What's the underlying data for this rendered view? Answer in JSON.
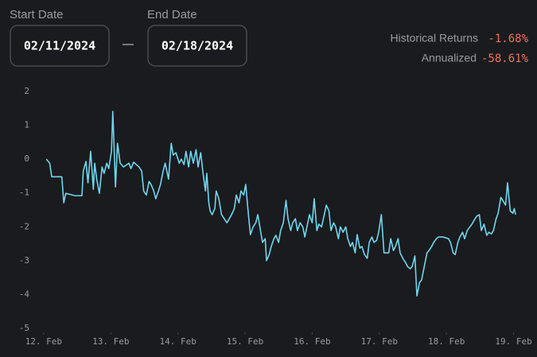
{
  "ui": {
    "start_label": "Start Date",
    "start_value": "02/11/2024",
    "end_label": "End Date",
    "end_value": "02/18/2024",
    "returns_label": "Historical Returns",
    "returns_value": "-1.68%",
    "annualized_label": "Annualized",
    "annualized_value": "-58.61%"
  },
  "chart_data": {
    "type": "line",
    "color": "#6fd6ee",
    "x": [
      12.04,
      12.09,
      12.12,
      12.27,
      12.3,
      12.33,
      12.47,
      12.57,
      12.59,
      12.63,
      12.66,
      12.7,
      12.74,
      12.76,
      12.79,
      12.83,
      12.87,
      12.9,
      12.94,
      12.97,
      13.01,
      13.03,
      13.07,
      13.1,
      13.14,
      13.19,
      13.27,
      13.3,
      13.34,
      13.42,
      13.46,
      13.49,
      13.53,
      13.57,
      13.6,
      13.64,
      13.67,
      13.71,
      13.74,
      13.78,
      13.81,
      13.86,
      13.9,
      13.93,
      13.97,
      14.02,
      14.05,
      14.09,
      14.12,
      14.16,
      14.19,
      14.23,
      14.27,
      14.3,
      14.34,
      14.37,
      14.41,
      14.43,
      14.46,
      14.48,
      14.51,
      14.55,
      14.57,
      14.61,
      14.65,
      14.69,
      14.73,
      14.8,
      14.84,
      14.87,
      14.91,
      14.94,
      14.98,
      15.01,
      15.05,
      15.08,
      15.12,
      15.16,
      15.19,
      15.23,
      15.26,
      15.3,
      15.32,
      15.36,
      15.39,
      15.43,
      15.46,
      15.5,
      15.53,
      15.57,
      15.61,
      15.64,
      15.68,
      15.71,
      15.75,
      15.78,
      15.82,
      15.86,
      15.89,
      15.93,
      15.96,
      16.0,
      16.03,
      16.07,
      16.1,
      16.14,
      16.18,
      16.21,
      16.25,
      16.28,
      16.32,
      16.35,
      16.39,
      16.42,
      16.46,
      16.5,
      16.53,
      16.57,
      16.6,
      16.64,
      16.67,
      16.71,
      16.74,
      16.78,
      16.82,
      16.85,
      16.89,
      16.92,
      16.96,
      16.99,
      17.03,
      17.07,
      17.14,
      17.17,
      17.21,
      17.24,
      17.28,
      17.31,
      17.35,
      17.39,
      17.42,
      17.46,
      17.49,
      17.53,
      17.56,
      17.6,
      17.63,
      17.67,
      17.71,
      17.74,
      17.78,
      17.81,
      17.85,
      17.88,
      17.95,
      18.03,
      18.06,
      18.1,
      18.13,
      18.17,
      18.2,
      18.24,
      18.27,
      18.31,
      18.35,
      18.38,
      18.42,
      18.45,
      18.49,
      18.52,
      18.56,
      18.6,
      18.63,
      18.67,
      18.7,
      18.74,
      18.77,
      18.81,
      18.84,
      18.88,
      18.91,
      18.95,
      18.99,
      19.01,
      19.03
    ],
    "values": [
      0,
      -0.12,
      -0.52,
      -0.52,
      -1.29,
      -1.01,
      -1.08,
      -1.08,
      -0.35,
      -0.07,
      -0.7,
      0.23,
      -0.89,
      -0.12,
      -0.59,
      -1.01,
      -0.23,
      -0.42,
      -0.12,
      -0.28,
      0.23,
      1.41,
      -0.82,
      0.47,
      -0.12,
      -0.23,
      -0.12,
      -0.28,
      -0.09,
      -0.23,
      -0.35,
      -0.94,
      -1.06,
      -0.66,
      -0.75,
      -0.94,
      -1.17,
      -0.94,
      -0.75,
      -0.35,
      -0.12,
      -0.59,
      0.47,
      0.12,
      0.19,
      -0.12,
      0,
      -0.16,
      0.23,
      -0.23,
      0.23,
      -0.12,
      0.28,
      -0.23,
      0.19,
      -0.35,
      -0.94,
      -0.42,
      -1.29,
      -1.53,
      -1.64,
      -1.46,
      -0.94,
      -1.17,
      -1.64,
      -1.76,
      -1.88,
      -1.64,
      -1.46,
      -1.06,
      -1.29,
      -0.94,
      -1.06,
      -0.75,
      -1.64,
      -2.23,
      -2.0,
      -1.88,
      -1.64,
      -2.11,
      -2.46,
      -2.35,
      -3.0,
      -2.82,
      -2.58,
      -2.35,
      -2.25,
      -2.46,
      -2.11,
      -1.88,
      -1.22,
      -1.76,
      -2.11,
      -1.88,
      -1.76,
      -2.11,
      -1.88,
      -2.0,
      -2.3,
      -1.92,
      -1.64,
      -1.88,
      -1.17,
      -2.11,
      -1.92,
      -2.0,
      -1.64,
      -1.36,
      -1.53,
      -2.11,
      -1.88,
      -2.0,
      -2.35,
      -2.0,
      -2.16,
      -2.0,
      -2.35,
      -2.58,
      -2.46,
      -2.77,
      -2.23,
      -2.63,
      -2.58,
      -2.82,
      -2.93,
      -2.46,
      -2.3,
      -2.46,
      -2.4,
      -2.16,
      -1.64,
      -2.77,
      -2.77,
      -2.35,
      -2.7,
      -2.58,
      -2.35,
      -2.77,
      -2.93,
      -3.05,
      -3.17,
      -3.24,
      -3.17,
      -2.86,
      -4.04,
      -3.64,
      -3.57,
      -3.17,
      -2.77,
      -2.7,
      -2.58,
      -2.46,
      -2.35,
      -2.3,
      -2.3,
      -2.35,
      -2.46,
      -2.77,
      -2.82,
      -2.46,
      -2.3,
      -2.16,
      -2.35,
      -2.11,
      -2.0,
      -1.92,
      -1.78,
      -1.69,
      -1.64,
      -2.11,
      -1.92,
      -2.25,
      -2.16,
      -2.21,
      -2.11,
      -1.76,
      -1.6,
      -1.13,
      -1.22,
      -1.36,
      -0.7,
      -1.53,
      -1.6,
      -1.46,
      -1.64
    ],
    "xlim": [
      11.8,
      19.1
    ],
    "xticks": [
      {
        "value": 12,
        "label": "12. Feb"
      },
      {
        "value": 13,
        "label": "13. Feb"
      },
      {
        "value": 14,
        "label": "14. Feb"
      },
      {
        "value": 15,
        "label": "15. Feb"
      },
      {
        "value": 16,
        "label": "16. Feb"
      },
      {
        "value": 17,
        "label": "17. Feb"
      },
      {
        "value": 18,
        "label": "18. Feb"
      },
      {
        "value": 19,
        "label": "19. Feb"
      }
    ],
    "ylim": [
      -5,
      2
    ],
    "yticks": [
      -5,
      -4,
      -3,
      -2,
      -1,
      0,
      1,
      2
    ],
    "grid": false
  }
}
